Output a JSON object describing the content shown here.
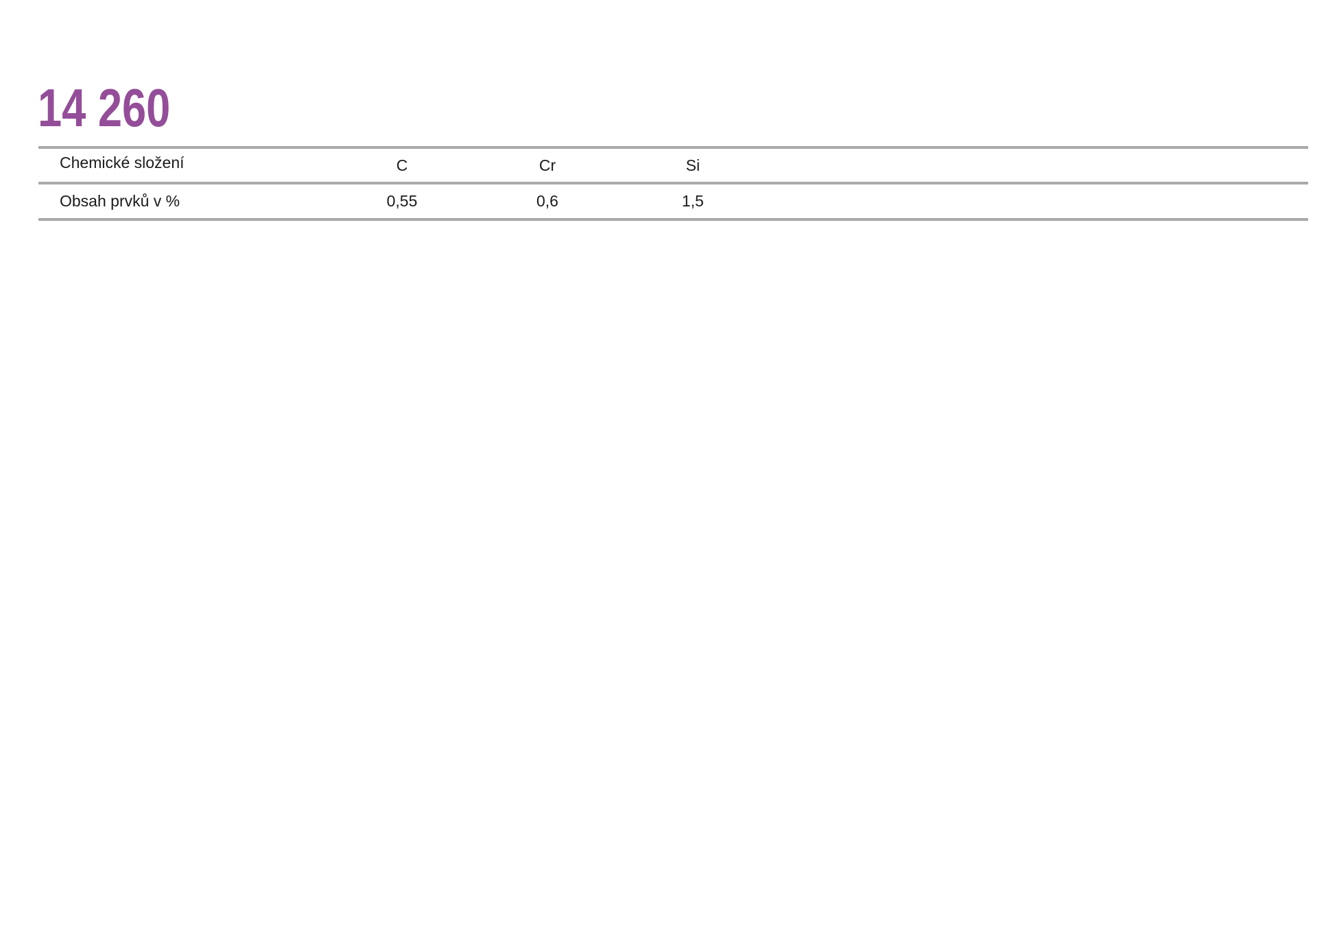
{
  "heading": {
    "text": "14 260"
  },
  "table": {
    "header_row": {
      "label": "Chemické složení",
      "columns": [
        "C",
        "Cr",
        "Si"
      ]
    },
    "data_row": {
      "label": "Obsah prvků v %",
      "values": [
        "0,55",
        "0,6",
        "1,5"
      ]
    }
  },
  "colors": {
    "heading": "#944d99",
    "rule": "#a9a9a9",
    "text": "#1a1a1a",
    "background": "#ffffff"
  }
}
